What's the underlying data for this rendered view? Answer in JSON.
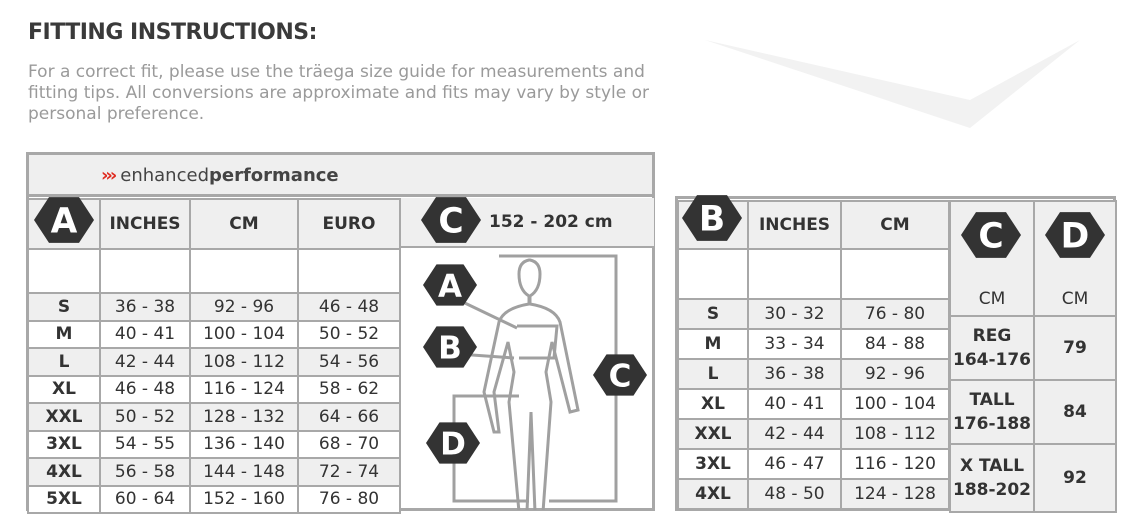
{
  "title": "FITTING INSTRUCTIONS:",
  "intro": "For a correct fit, please use the träega size guide for measurements and fitting tips. All conversions are approximate and fits may vary by style or personal preference.",
  "brand": {
    "prefix": "›››",
    "light": "enhanced",
    "bold": "performance"
  },
  "colors": {
    "accent": "#e02b20",
    "badge": "#333333",
    "border": "#a8a8a8",
    "shade": "#efefef"
  },
  "chartA": {
    "badge": "A",
    "headers": [
      "INCHES",
      "CM",
      "EURO"
    ],
    "height_badge": "C",
    "height_range": "152 - 202 cm",
    "figure_badges": [
      "A",
      "B",
      "C",
      "D"
    ],
    "rows": [
      [
        "S",
        "36 - 38",
        "92 - 96",
        "46 - 48"
      ],
      [
        "M",
        "40 - 41",
        "100 - 104",
        "50 - 52"
      ],
      [
        "L",
        "42 - 44",
        "108 - 112",
        "54 - 56"
      ],
      [
        "XL",
        "46 - 48",
        "116 - 124",
        "58 - 62"
      ],
      [
        "XXL",
        "50 - 52",
        "128 - 132",
        "64 - 66"
      ],
      [
        "3XL",
        "54 - 55",
        "136 - 140",
        "68 - 70"
      ],
      [
        "4XL",
        "56 - 58",
        "144 - 148",
        "72 - 74"
      ],
      [
        "5XL",
        "60 - 64",
        "152 - 160",
        "76 - 80"
      ]
    ]
  },
  "chartB": {
    "badge": "B",
    "headers": [
      "INCHES",
      "CM"
    ],
    "rows": [
      [
        "S",
        "30 - 32",
        "76 - 80"
      ],
      [
        "M",
        "33 - 34",
        "84 - 88"
      ],
      [
        "L",
        "36 - 38",
        "92 - 96"
      ],
      [
        "XL",
        "40 - 41",
        "100 - 104"
      ],
      [
        "XXL",
        "42 - 44",
        "108 - 112"
      ],
      [
        "3XL",
        "46 - 47",
        "116 - 120"
      ],
      [
        "4XL",
        "48 - 50",
        "124 - 128"
      ]
    ],
    "c_badge": "C",
    "d_badge": "D",
    "c_unit": "CM",
    "d_unit": "CM",
    "lengths": [
      {
        "label": "REG",
        "range": "164-176",
        "d": "79"
      },
      {
        "label": "TALL",
        "range": "176-188",
        "d": "84"
      },
      {
        "label": "X TALL",
        "range": "188-202",
        "d": "92"
      }
    ]
  }
}
